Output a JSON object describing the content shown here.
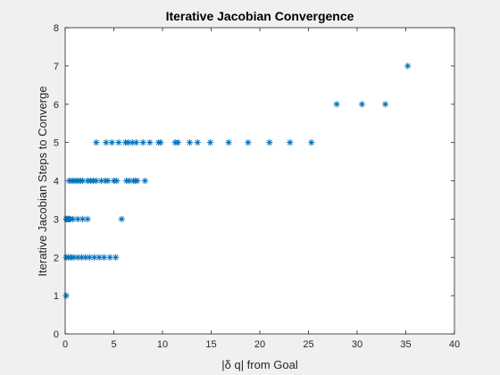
{
  "chart_data": {
    "type": "scatter",
    "title": "Iterative Jacobian Convergence",
    "xlabel": "|δ q| from Goal",
    "ylabel": "Iterative Jacobian Steps to Converge",
    "xlim": [
      0,
      40
    ],
    "ylim": [
      0,
      8
    ],
    "xticks": [
      0,
      5,
      10,
      15,
      20,
      25,
      30,
      35,
      40
    ],
    "yticks": [
      0,
      1,
      2,
      3,
      4,
      5,
      6,
      7,
      8
    ],
    "grid": false,
    "marker": "asterisk",
    "colors": {
      "marker": "#0072bd",
      "axes": "#262626",
      "background": "#ffffff",
      "figure": "#f0f0f0"
    },
    "x": [
      0.1,
      0.1,
      0.3,
      0.6,
      0.9,
      1.3,
      1.7,
      2.1,
      2.5,
      3.0,
      3.5,
      4.0,
      4.6,
      5.2,
      0.1,
      0.2,
      0.3,
      0.4,
      0.5,
      0.8,
      1.3,
      1.8,
      2.3,
      5.8,
      0.4,
      0.6,
      0.8,
      1.0,
      1.2,
      1.4,
      1.6,
      1.8,
      2.3,
      2.6,
      2.9,
      3.2,
      3.7,
      4.1,
      4.4,
      5.0,
      5.3,
      6.3,
      6.6,
      7.0,
      7.2,
      7.4,
      8.2,
      3.2,
      4.2,
      4.8,
      5.5,
      6.2,
      6.5,
      6.9,
      7.3,
      8.0,
      8.7,
      9.6,
      9.8,
      11.3,
      11.6,
      12.8,
      13.6,
      14.9,
      16.8,
      18.8,
      21.0,
      23.1,
      25.3,
      27.9,
      30.5,
      32.9,
      35.2
    ],
    "y": [
      1,
      2,
      2,
      2,
      2,
      2,
      2,
      2,
      2,
      2,
      2,
      2,
      2,
      2,
      3,
      3,
      3,
      3,
      3,
      3,
      3,
      3,
      3,
      3,
      4,
      4,
      4,
      4,
      4,
      4,
      4,
      4,
      4,
      4,
      4,
      4,
      4,
      4,
      4,
      4,
      4,
      4,
      4,
      4,
      4,
      4,
      4,
      5,
      5,
      5,
      5,
      5,
      5,
      5,
      5,
      5,
      5,
      5,
      5,
      5,
      5,
      5,
      5,
      5,
      5,
      5,
      5,
      5,
      5,
      6,
      6,
      6,
      7
    ]
  }
}
